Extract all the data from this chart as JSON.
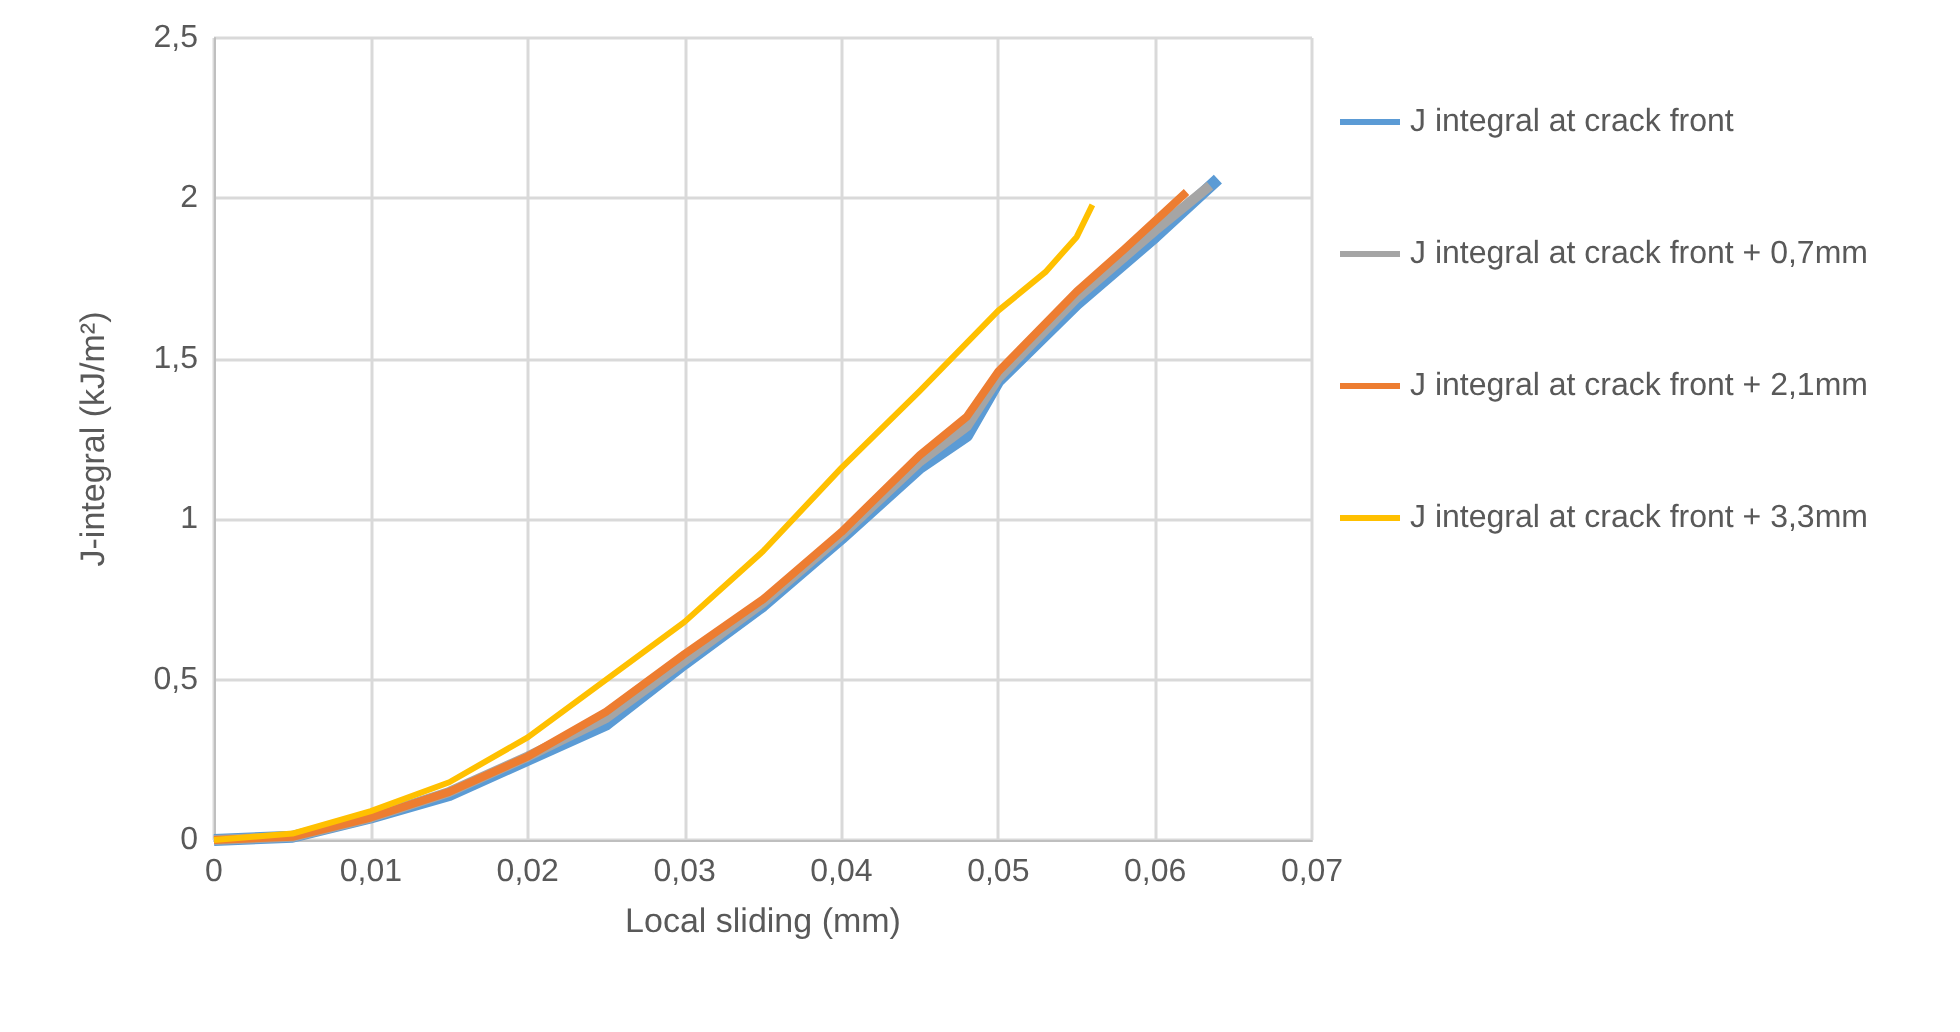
{
  "chart_data": {
    "type": "line",
    "xlabel": "Local sliding (mm)",
    "ylabel": "J-integral (kJ/m²)",
    "xlim": [
      0,
      0.07
    ],
    "ylim": [
      0,
      2.5
    ],
    "xticks": [
      {
        "value": 0,
        "label": "0"
      },
      {
        "value": 0.01,
        "label": "0,01"
      },
      {
        "value": 0.02,
        "label": "0,02"
      },
      {
        "value": 0.03,
        "label": "0,03"
      },
      {
        "value": 0.04,
        "label": "0,04"
      },
      {
        "value": 0.05,
        "label": "0,05"
      },
      {
        "value": 0.06,
        "label": "0,06"
      },
      {
        "value": 0.07,
        "label": "0,07"
      }
    ],
    "yticks": [
      {
        "value": 0,
        "label": "0"
      },
      {
        "value": 0.5,
        "label": "0,5"
      },
      {
        "value": 1,
        "label": "1"
      },
      {
        "value": 1.5,
        "label": "1,5"
      },
      {
        "value": 2,
        "label": "2"
      },
      {
        "value": 2.5,
        "label": "2,5"
      }
    ],
    "grid": true,
    "legend": "right",
    "marker": "none",
    "line_style": "solid",
    "series": [
      {
        "name": "J integral at crack front",
        "color": "#5b9bd5",
        "x": [
          0,
          0.005,
          0.01,
          0.015,
          0.02,
          0.025,
          0.03,
          0.035,
          0.04,
          0.045,
          0.048,
          0.05,
          0.055,
          0.06,
          0.064
        ],
        "values": [
          0,
          0.01,
          0.07,
          0.14,
          0.25,
          0.36,
          0.55,
          0.73,
          0.94,
          1.16,
          1.26,
          1.43,
          1.67,
          1.88,
          2.06
        ]
      },
      {
        "name": "J integral at crack front + 0,7mm",
        "color": "#a5a5a5",
        "x": [
          0,
          0.005,
          0.01,
          0.015,
          0.02,
          0.025,
          0.03,
          0.035,
          0.04,
          0.045,
          0.048,
          0.05,
          0.055,
          0.06,
          0.0635
        ],
        "values": [
          0,
          0.01,
          0.07,
          0.15,
          0.26,
          0.38,
          0.56,
          0.74,
          0.95,
          1.18,
          1.29,
          1.44,
          1.69,
          1.9,
          2.04
        ]
      },
      {
        "name": "J integral at crack front + 2,1mm",
        "color": "#ed7d31",
        "x": [
          0,
          0.005,
          0.01,
          0.015,
          0.02,
          0.025,
          0.03,
          0.035,
          0.04,
          0.045,
          0.048,
          0.05,
          0.055,
          0.058,
          0.062
        ],
        "values": [
          0,
          0.01,
          0.07,
          0.15,
          0.26,
          0.4,
          0.58,
          0.75,
          0.96,
          1.2,
          1.32,
          1.46,
          1.71,
          1.84,
          2.02
        ]
      },
      {
        "name": "J integral at crack front + 3,3mm",
        "color": "#ffc000",
        "x": [
          0,
          0.005,
          0.01,
          0.015,
          0.02,
          0.025,
          0.03,
          0.035,
          0.04,
          0.045,
          0.05,
          0.053,
          0.055,
          0.056
        ],
        "values": [
          0,
          0.02,
          0.09,
          0.18,
          0.32,
          0.5,
          0.68,
          0.9,
          1.16,
          1.4,
          1.65,
          1.77,
          1.88,
          1.98
        ]
      }
    ]
  }
}
